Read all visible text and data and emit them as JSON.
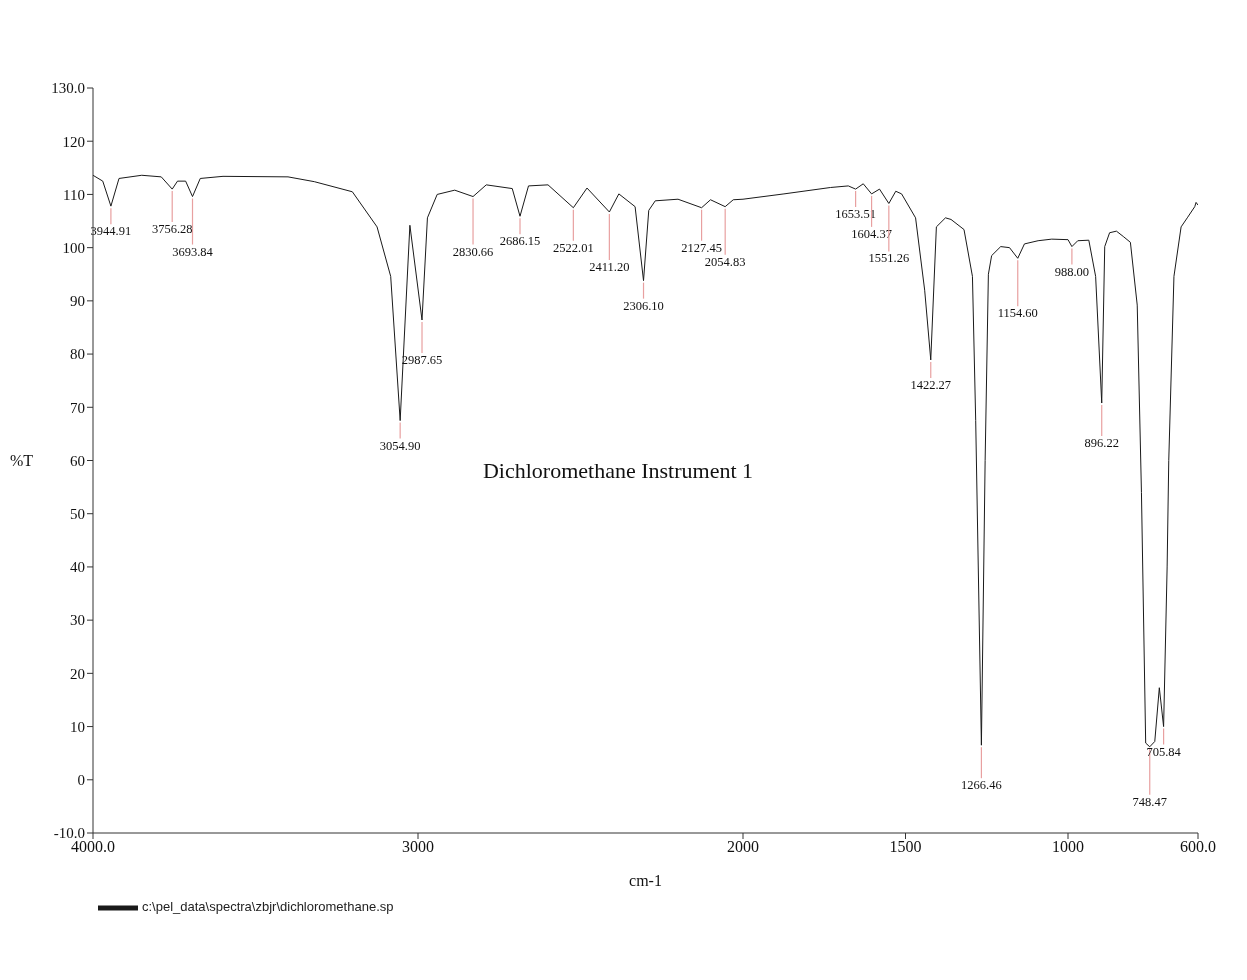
{
  "chart_data": {
    "type": "line",
    "title": "Dichloromethane Instrument 1",
    "xlabel": "cm-1",
    "ylabel": "%T",
    "xlim": [
      4000,
      600
    ],
    "xticks": [
      {
        "value": 4000,
        "label": "4000.0"
      },
      3000,
      2000,
      1500,
      1000,
      {
        "value": 600,
        "label": "600.0"
      }
    ],
    "ylim": [
      -10,
      130
    ],
    "yticks": [
      {
        "value": -10,
        "label": "-10.0"
      },
      0,
      10,
      20,
      30,
      40,
      50,
      60,
      70,
      80,
      90,
      100,
      110,
      120,
      {
        "value": 130,
        "label": "130.0"
      }
    ],
    "grid": false,
    "legend": "bottom left",
    "x": [
      4000,
      3970,
      3944.91,
      3920,
      3850,
      3790,
      3756.28,
      3740,
      3715,
      3693.84,
      3670,
      3600,
      3400,
      3319,
      3202,
      3126,
      3084,
      3054.9,
      3025,
      2987.65,
      2971,
      2941,
      2887,
      2830.66,
      2790,
      2710,
      2686.15,
      2660,
      2600,
      2522.01,
      2480,
      2411.2,
      2382,
      2332,
      2306.1,
      2290,
      2270,
      2200,
      2127.45,
      2100,
      2054.83,
      2030,
      2000,
      1874,
      1731,
      1676,
      1653.51,
      1630,
      1604.37,
      1580,
      1551.26,
      1530,
      1512,
      1469,
      1441,
      1422.27,
      1405,
      1377,
      1360,
      1320,
      1294,
      1284,
      1266.46,
      1255,
      1245,
      1235,
      1207,
      1180,
      1154.6,
      1134,
      1092,
      1050,
      1000,
      988,
      970,
      936,
      915,
      896.22,
      887,
      872,
      851,
      830,
      808,
      787,
      774,
      761,
      748.47,
      733,
      719,
      705.84,
      695,
      690,
      674,
      652,
      633,
      610,
      606,
      600
    ],
    "series": [
      {
        "name": "c:\\pel_data\\spectra\\zbjr\\dichloromethane.sp",
        "color": "#1a1a1a",
        "values": [
          113.6,
          112.5,
          107.8,
          113,
          113.6,
          113.3,
          111,
          112.5,
          112.5,
          109.6,
          113,
          113.4,
          113.3,
          112.4,
          110.5,
          103.9,
          94.6,
          67.5,
          104.2,
          86.4,
          105.6,
          110,
          110.8,
          109.6,
          111.8,
          111.1,
          105.9,
          111.6,
          111.8,
          107.5,
          111.2,
          106.7,
          110.1,
          107.7,
          93.8,
          107,
          108.8,
          109.1,
          107.5,
          109,
          107.7,
          109,
          109.1,
          110.1,
          111.3,
          111.6,
          111,
          112,
          110.1,
          111,
          108.3,
          110.6,
          110.1,
          105.6,
          92,
          78.9,
          103.9,
          105.6,
          105.3,
          103.4,
          94.6,
          67.5,
          6.5,
          60,
          95,
          98.5,
          100.2,
          100,
          98,
          100.7,
          101.3,
          101.6,
          101.5,
          100.2,
          101.3,
          101.4,
          94.6,
          70.8,
          100.2,
          102.8,
          103.1,
          102.1,
          101,
          89.2,
          54,
          6.9,
          6.2,
          7.2,
          17.3,
          10,
          40,
          60,
          94.6,
          103.9,
          105.6,
          107.7,
          108.5,
          108
        ]
      }
    ],
    "annotations": [
      {
        "text": "3944.91",
        "x": 3944.91,
        "y": 107.8
      },
      {
        "text": "3756.28",
        "x": 3756.28,
        "y": 111
      },
      {
        "text": "3693.84",
        "x": 3693.84,
        "y": 109.6
      },
      {
        "text": "3054.90",
        "x": 3054.9,
        "y": 67.5
      },
      {
        "text": "2987.65",
        "x": 2987.65,
        "y": 86.4
      },
      {
        "text": "2830.66",
        "x": 2830.66,
        "y": 109.6
      },
      {
        "text": "2686.15",
        "x": 2686.15,
        "y": 105.9
      },
      {
        "text": "2522.01",
        "x": 2522.01,
        "y": 107.5
      },
      {
        "text": "2411.20",
        "x": 2411.2,
        "y": 106.7
      },
      {
        "text": "2306.10",
        "x": 2306.1,
        "y": 93.8
      },
      {
        "text": "2127.45",
        "x": 2127.45,
        "y": 107.5
      },
      {
        "text": "2054.83",
        "x": 2054.83,
        "y": 107.7
      },
      {
        "text": "1653.51",
        "x": 1653.51,
        "y": 111
      },
      {
        "text": "1604.37",
        "x": 1604.37,
        "y": 110.1
      },
      {
        "text": "1551.26",
        "x": 1551.26,
        "y": 108.3
      },
      {
        "text": "1422.27",
        "x": 1422.27,
        "y": 78.9
      },
      {
        "text": "1266.46",
        "x": 1266.46,
        "y": 6.5
      },
      {
        "text": "1154.60",
        "x": 1154.6,
        "y": 98
      },
      {
        "text": "988.00",
        "x": 988,
        "y": 100.2
      },
      {
        "text": "896.22",
        "x": 896.22,
        "y": 70.8
      },
      {
        "text": "748.47",
        "x": 748.47,
        "y": 6.2
      },
      {
        "text": "705.84",
        "x": 705.84,
        "y": 10
      }
    ]
  }
}
